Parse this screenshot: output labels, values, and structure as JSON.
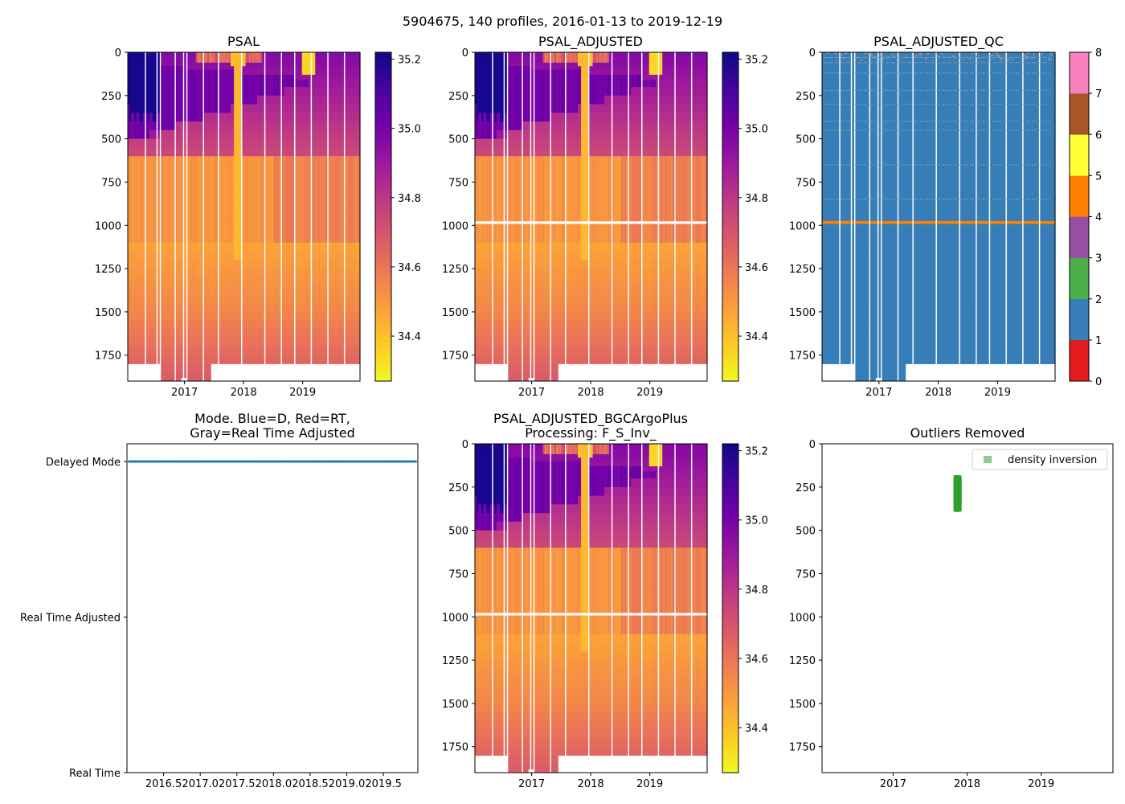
{
  "suptitle": "5904675, 140 profiles, 2016-01-13 to 2019-12-19",
  "colors": {
    "plasma": [
      "#f0f921",
      "#fdca26",
      "#fb9f3a",
      "#ed7953",
      "#d8576b",
      "#bd3786",
      "#9c179e",
      "#7201a8",
      "#46039f",
      "#0d0887"
    ],
    "qc": [
      "#e41a1c",
      "#377eb8",
      "#4daf4a",
      "#984ea3",
      "#ff7f00",
      "#ffff33",
      "#a65628",
      "#f781bf",
      "#999999"
    ],
    "mode_delayed": "#1f77b4",
    "outlier": "#2ca02c"
  },
  "chart_data": [
    {
      "id": "psal",
      "type": "heatmap",
      "title": "PSAL",
      "xlim": [
        2016.04,
        2019.97
      ],
      "ylim": [
        1900,
        0
      ],
      "xticks": [
        "2017",
        "2018",
        "2019"
      ],
      "yticks": [
        "0",
        "250",
        "500",
        "750",
        "1000",
        "1250",
        "1500",
        "1750"
      ],
      "colorbar": {
        "range": [
          34.27,
          35.22
        ],
        "ticks": [
          "34.4",
          "34.6",
          "34.8",
          "35.0",
          "35.2"
        ]
      },
      "gap_band": null
    },
    {
      "id": "psal_adj",
      "type": "heatmap",
      "title": "PSAL_ADJUSTED",
      "xlim": [
        2016.04,
        2019.97
      ],
      "ylim": [
        1900,
        0
      ],
      "xticks": [
        "2017",
        "2018",
        "2019"
      ],
      "yticks": [
        "0",
        "250",
        "500",
        "750",
        "1000",
        "1250",
        "1500",
        "1750"
      ],
      "colorbar": {
        "range": [
          34.27,
          35.22
        ],
        "ticks": [
          "34.4",
          "34.6",
          "34.8",
          "35.0",
          "35.2"
        ]
      },
      "gap_band": [
        975,
        992
      ]
    },
    {
      "id": "psal_adj_qc",
      "type": "heatmap",
      "title": "PSAL_ADJUSTED_QC",
      "xlim": [
        2016.04,
        2019.97
      ],
      "ylim": [
        1900,
        0
      ],
      "xticks": [
        "2017",
        "2018",
        "2019"
      ],
      "yticks": [
        "0",
        "250",
        "500",
        "750",
        "1000",
        "1250",
        "1500",
        "1750"
      ],
      "colorbar": {
        "levels": [
          "0",
          "1",
          "2",
          "3",
          "4",
          "5",
          "6",
          "7",
          "8"
        ]
      },
      "dominant_flag": "1",
      "band_flag": "4",
      "band_depth": [
        975,
        992
      ]
    },
    {
      "id": "mode",
      "type": "scatter",
      "title_lines": [
        "Mode. Blue=D, Red=RT,",
        "Gray=Real Time Adjusted"
      ],
      "xlim": [
        2016.0,
        2019.97
      ],
      "xticks": [
        "2016.5",
        "2017.0",
        "2017.5",
        "2018.0",
        "2018.5",
        "2019.0",
        "2019.5"
      ],
      "categories": [
        "Real Time",
        "Real Time Adjusted",
        "Delayed Mode"
      ],
      "profile_count": 140,
      "value": "Delayed Mode"
    },
    {
      "id": "psal_bgc",
      "type": "heatmap",
      "title_lines": [
        "PSAL_ADJUSTED_BGCArgoPlus",
        "Processing: F_S_Inv_"
      ],
      "xlim": [
        2016.04,
        2019.97
      ],
      "ylim": [
        1900,
        0
      ],
      "xticks": [
        "2017",
        "2018",
        "2019"
      ],
      "yticks": [
        "0",
        "250",
        "500",
        "750",
        "1000",
        "1250",
        "1500",
        "1750"
      ],
      "colorbar": {
        "range": [
          34.27,
          35.22
        ],
        "ticks": [
          "34.4",
          "34.6",
          "34.8",
          "35.0",
          "35.2"
        ]
      },
      "gap_band": [
        975,
        992
      ]
    },
    {
      "id": "outliers",
      "type": "scatter",
      "title": "Outliers Removed",
      "xlim": [
        2016.04,
        2019.97
      ],
      "ylim": [
        1900,
        0
      ],
      "xticks": [
        "2017",
        "2018",
        "2019"
      ],
      "yticks": [
        "0",
        "250",
        "500",
        "750",
        "1000",
        "1250",
        "1500",
        "1750"
      ],
      "legend": {
        "label": "density inversion",
        "loc": "upper right"
      },
      "points": {
        "x": 2017.87,
        "depth_range": [
          195,
          380
        ]
      }
    }
  ]
}
